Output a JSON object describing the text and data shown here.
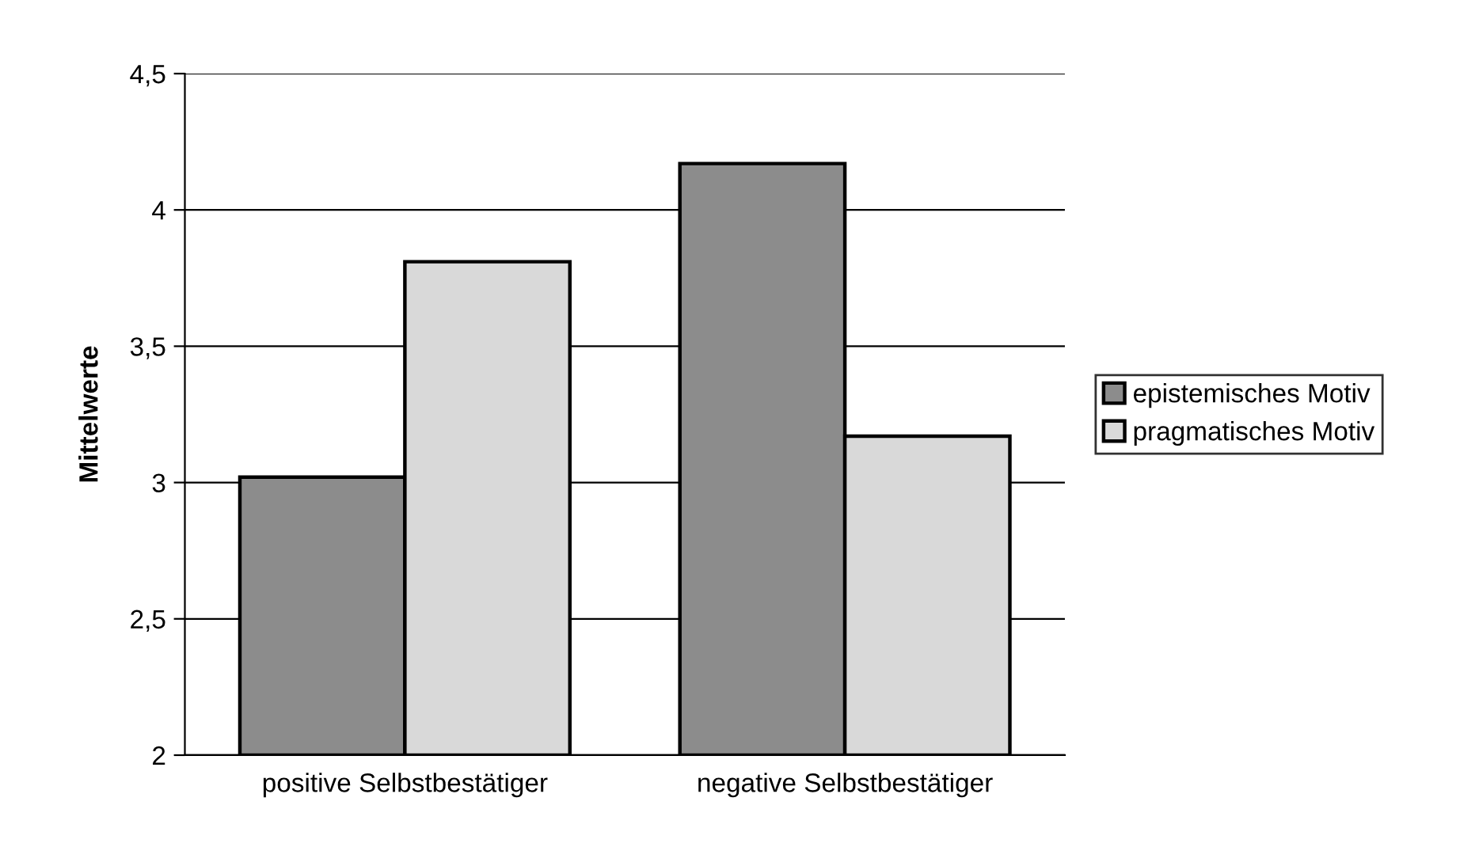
{
  "chart_data": {
    "type": "bar",
    "ylabel": "Mittelwerte",
    "categories": [
      "positive Selbstbestätiger",
      "negative Selbstbestätiger"
    ],
    "series": [
      {
        "name": "epistemisches Motiv",
        "color": "#8c8c8c",
        "values": [
          3.02,
          4.17
        ]
      },
      {
        "name": "pragmatisches Motiv",
        "color": "#d9d9d9",
        "values": [
          3.81,
          3.17
        ]
      }
    ],
    "ylim": [
      2,
      4.5
    ],
    "yticks": [
      {
        "value": 2,
        "label": "2"
      },
      {
        "value": 2.5,
        "label": "2,5"
      },
      {
        "value": 3,
        "label": "3"
      },
      {
        "value": 3.5,
        "label": "3,5"
      },
      {
        "value": 4,
        "label": "4"
      },
      {
        "value": 4.5,
        "label": "4,5"
      }
    ],
    "grid": "y",
    "legend": "right"
  }
}
